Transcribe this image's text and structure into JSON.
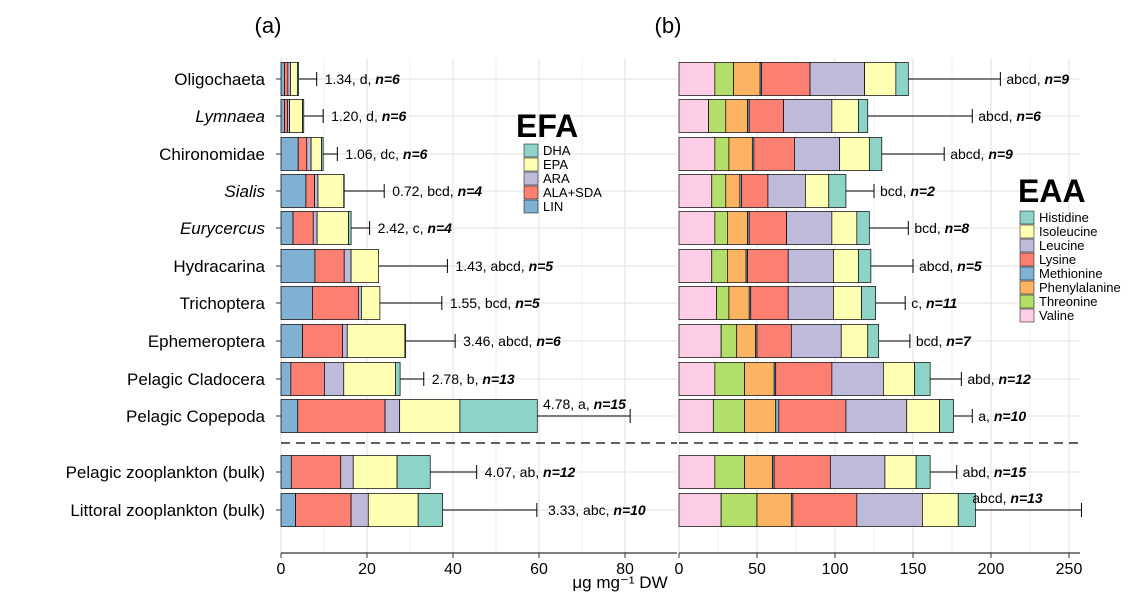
{
  "xlabel": "μg mg⁻¹ DW",
  "categories": [
    {
      "label": "Oligochaeta",
      "italic": false
    },
    {
      "label": "Lymnaea",
      "italic": true
    },
    {
      "label": "Chironomidae",
      "italic": false
    },
    {
      "label": "Sialis",
      "italic": true
    },
    {
      "label": "Eurycercus",
      "italic": true
    },
    {
      "label": "Hydracarina",
      "italic": false
    },
    {
      "label": "Trichoptera",
      "italic": false
    },
    {
      "label": "Ephemeroptera",
      "italic": false
    },
    {
      "label": "Pelagic Cladocera",
      "italic": false
    },
    {
      "label": "Pelagic Copepoda",
      "italic": false
    },
    {
      "label": "Pelagic zooplankton (bulk)",
      "italic": false
    },
    {
      "label": "Littoral zooplankton (bulk)",
      "italic": false
    }
  ],
  "colors": {
    "DHA": "#8dd3c7",
    "EPA": "#ffffb3",
    "ARA": "#bebada",
    "ALA+SDA": "#fb8072",
    "LIN": "#80b1d3",
    "Histidine": "#8dd3c7",
    "Isoleucine": "#ffffb3",
    "Leucine": "#bebada",
    "Lysine": "#fb8072",
    "Methionine": "#80b1d3",
    "Phenylalanine": "#fdb462",
    "Threonine": "#b3de69",
    "Valine": "#fccde5"
  },
  "chart_data": [
    {
      "panel": "(a)",
      "type": "bar",
      "orientation": "horizontal",
      "stacked": true,
      "legend_title": "EFA",
      "legend_position": "top-right",
      "xlim": [
        0,
        80
      ],
      "xticks": [
        0,
        20,
        40,
        60,
        80
      ],
      "grid": true,
      "series": [
        {
          "name": "LIN",
          "values": [
            0.8,
            0.8,
            4.0,
            5.8,
            2.8,
            7.9,
            7.3,
            5.0,
            2.3,
            3.9,
            2.4,
            3.4
          ]
        },
        {
          "name": "ALA+SDA",
          "values": [
            0.8,
            0.7,
            2.0,
            2.0,
            4.7,
            6.8,
            10.7,
            9.3,
            7.8,
            20.3,
            11.5,
            12.9
          ]
        },
        {
          "name": "ARA",
          "values": [
            0.6,
            0.5,
            1.0,
            0.8,
            0.9,
            1.6,
            0.7,
            1.1,
            4.5,
            3.4,
            2.9,
            4.0
          ]
        },
        {
          "name": "EPA",
          "values": [
            1.6,
            3.0,
            2.4,
            6.0,
            7.3,
            6.4,
            4.3,
            13.4,
            12.0,
            14.0,
            10.2,
            11.6
          ]
        },
        {
          "name": "DHA",
          "values": [
            0.3,
            0.3,
            0.4,
            0.1,
            0.6,
            0.0,
            0.0,
            0.2,
            1.1,
            18.0,
            7.7,
            5.7
          ]
        }
      ],
      "error_upper": [
        8.3,
        9.8,
        13.1,
        24.0,
        20.6,
        38.7,
        37.4,
        40.5,
        33.2,
        81.2,
        45.5,
        59.5
      ],
      "annotations": [
        {
          "value": "1.34",
          "group": "d",
          "n": "n=6"
        },
        {
          "value": "1.20",
          "group": "d",
          "n": "n=6"
        },
        {
          "value": "1.06",
          "group": "dc",
          "n": "n=6"
        },
        {
          "value": "0.72",
          "group": "bcd",
          "n": "n=4"
        },
        {
          "value": "2.42",
          "group": "c",
          "n": "n=4"
        },
        {
          "value": "1.43",
          "group": "abcd",
          "n": "n=5"
        },
        {
          "value": "1.55",
          "group": "bcd",
          "n": "n=5"
        },
        {
          "value": "3.46",
          "group": "abcd",
          "n": "n=6"
        },
        {
          "value": "2.78",
          "group": "b",
          "n": "n=13"
        },
        {
          "value": "4.78",
          "group": "a",
          "n": "n=15"
        },
        {
          "value": "4.07",
          "group": "ab",
          "n": "n=12"
        },
        {
          "value": "3.33",
          "group": "abc",
          "n": "n=10"
        }
      ]
    },
    {
      "panel": "(b)",
      "type": "bar",
      "orientation": "horizontal",
      "stacked": true,
      "legend_title": "EAA",
      "legend_position": "right",
      "xlim": [
        0,
        250
      ],
      "xticks": [
        0,
        50,
        100,
        150,
        200,
        250
      ],
      "grid": true,
      "series": [
        {
          "name": "Valine",
          "values": [
            23,
            19,
            23,
            21,
            23,
            21,
            24,
            27,
            23,
            22,
            23,
            27
          ]
        },
        {
          "name": "Threonine",
          "values": [
            12,
            11,
            9,
            9,
            8,
            10,
            8,
            10,
            19,
            20,
            19,
            23
          ]
        },
        {
          "name": "Phenylalanine",
          "values": [
            17,
            14,
            15,
            9,
            13,
            12,
            13,
            12,
            19,
            20,
            18,
            22
          ]
        },
        {
          "name": "Methionine",
          "values": [
            1,
            1,
            1,
            1,
            1,
            1,
            1,
            1,
            1,
            2,
            1,
            1
          ]
        },
        {
          "name": "Lysine",
          "values": [
            31,
            22,
            26,
            17,
            24,
            26,
            24,
            22,
            36,
            43,
            36,
            41
          ]
        },
        {
          "name": "Leucine",
          "values": [
            35,
            31,
            29,
            24,
            29,
            29,
            29,
            32,
            33,
            39,
            35,
            42
          ]
        },
        {
          "name": "Isoleucine",
          "values": [
            20,
            17,
            19,
            15,
            16,
            16,
            18,
            17,
            20,
            21,
            20,
            23
          ]
        },
        {
          "name": "Histidine",
          "values": [
            8,
            6,
            8,
            11,
            8,
            8,
            9,
            7,
            10,
            9,
            9,
            11
          ]
        }
      ],
      "error_upper": [
        206,
        188,
        170,
        125,
        147,
        150,
        145,
        148,
        181,
        188,
        178,
        258
      ],
      "annotations": [
        {
          "value": "",
          "group": "abcd",
          "n": "n=9"
        },
        {
          "value": "",
          "group": "abcd",
          "n": "n=6"
        },
        {
          "value": "",
          "group": "abcd",
          "n": "n=9"
        },
        {
          "value": "",
          "group": "bcd",
          "n": "n=2"
        },
        {
          "value": "",
          "group": "bcd",
          "n": "n=8"
        },
        {
          "value": "",
          "group": "abcd",
          "n": "n=5"
        },
        {
          "value": "",
          "group": "c",
          "n": "n=11"
        },
        {
          "value": "",
          "group": "bcd",
          "n": "n=7"
        },
        {
          "value": "",
          "group": "abd",
          "n": "n=12"
        },
        {
          "value": "",
          "group": "a",
          "n": "n=10"
        },
        {
          "value": "",
          "group": "abd",
          "n": "n=15"
        },
        {
          "value": "",
          "group": "abcd",
          "n": "n=13"
        }
      ]
    }
  ]
}
